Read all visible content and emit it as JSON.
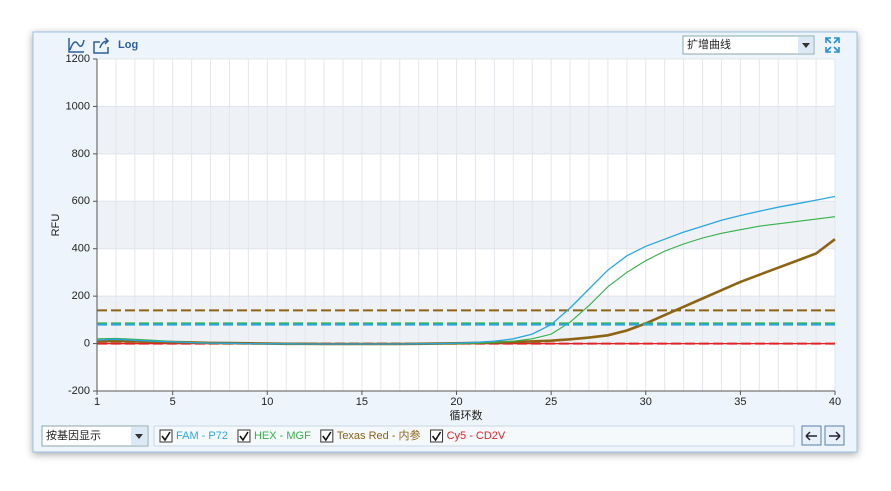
{
  "toolbar": {
    "log": "Log",
    "view_select": "扩增曲线"
  },
  "bottom": {
    "group_select": "按基因显示"
  },
  "chart_data": {
    "type": "line",
    "x_label": "循环数",
    "y_label": "RFU",
    "x": [
      1,
      2,
      3,
      4,
      5,
      6,
      7,
      8,
      9,
      10,
      11,
      12,
      13,
      14,
      15,
      16,
      17,
      18,
      19,
      20,
      21,
      22,
      23,
      24,
      25,
      26,
      27,
      28,
      29,
      30,
      31,
      32,
      33,
      34,
      35,
      36,
      37,
      38,
      39,
      40
    ],
    "xlim": [
      1,
      40
    ],
    "xticks": [
      1,
      5,
      10,
      15,
      20,
      25,
      30,
      35,
      40
    ],
    "ylim": [
      -200,
      1200
    ],
    "yticks": [
      -200,
      0,
      200,
      400,
      600,
      800,
      1000,
      1200
    ],
    "grid": true,
    "series": [
      {
        "name": "FAM - P72",
        "color": "#2aa7e0",
        "width": 1.3,
        "threshold": 80,
        "values": [
          15,
          18,
          14,
          10,
          7,
          4,
          2,
          1,
          0,
          -1,
          -1,
          -2,
          -2,
          -2,
          -2,
          -2,
          -2,
          -1,
          0,
          2,
          5,
          10,
          20,
          40,
          80,
          150,
          230,
          310,
          370,
          410,
          440,
          470,
          495,
          520,
          540,
          558,
          575,
          590,
          605,
          620
        ]
      },
      {
        "name": "HEX - MGF",
        "color": "#35b04a",
        "width": 1.1,
        "threshold": 85,
        "values": [
          20,
          22,
          18,
          14,
          9,
          5,
          3,
          1,
          0,
          -1,
          -1,
          -2,
          -2,
          -2,
          -2,
          -2,
          -2,
          -2,
          -1,
          0,
          2,
          5,
          10,
          20,
          40,
          90,
          160,
          240,
          300,
          350,
          390,
          420,
          445,
          465,
          480,
          495,
          505,
          515,
          525,
          535
        ]
      },
      {
        "name": "Texas Red - 内参",
        "color": "#8c6414",
        "width": 2.6,
        "threshold": 140,
        "values": [
          10,
          10,
          9,
          8,
          6,
          5,
          3,
          2,
          1,
          0,
          -1,
          -1,
          -2,
          -2,
          -2,
          -2,
          -2,
          -1,
          0,
          1,
          3,
          5,
          7,
          9,
          12,
          18,
          25,
          35,
          55,
          85,
          120,
          155,
          190,
          225,
          260,
          290,
          320,
          350,
          380,
          440
        ]
      },
      {
        "name": "Cy5 - CD2V",
        "color": "#e02424",
        "width": 1.3,
        "threshold": 0,
        "values": [
          0,
          0,
          0,
          0,
          0,
          0,
          0,
          0,
          0,
          0,
          0,
          0,
          0,
          0,
          0,
          0,
          0,
          0,
          0,
          0,
          0,
          0,
          0,
          0,
          0,
          0,
          0,
          0,
          0,
          0,
          0,
          0,
          0,
          0,
          0,
          0,
          0,
          0,
          0,
          0
        ]
      }
    ]
  }
}
